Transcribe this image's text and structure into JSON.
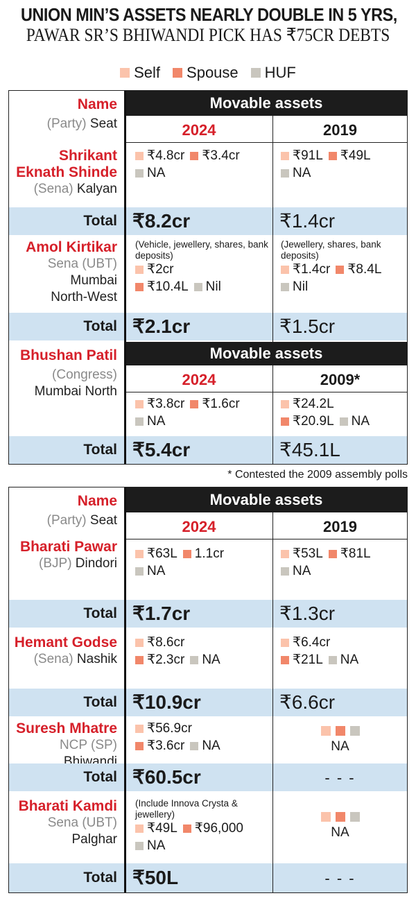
{
  "headline": {
    "line1": "UNION MIN’S ASSETS NEARLY DOUBLE IN 5 YRS,",
    "line2": "PAWAR SR’S BHIWANDI PICK HAS ₹75CR DEBTS"
  },
  "legend": {
    "self": "Self",
    "spouse": "Spouse",
    "huf": "HUF"
  },
  "colors": {
    "self": "#fbc3ab",
    "spouse": "#f1876a",
    "huf": "#c9c6be",
    "accent": "#d6202a",
    "total_bg": "#cfe2f1",
    "header_bg": "#1c1c1c"
  },
  "labels": {
    "name": "Name",
    "party_prefix": "(Party)",
    "seat": "Seat",
    "movable_assets": "Movable assets",
    "total": "Total",
    "na": "NA",
    "nil": "Nil",
    "dashes": "- - -"
  },
  "footnote": "* Contested the 2009 assembly polls",
  "chart_data": {
    "type": "table",
    "columns": [
      "Name (Party) Seat",
      "Movable assets"
    ],
    "candidates": [
      {
        "name_line1": "Shrikant",
        "name_line2": "Eknath Shinde",
        "party": "(Sena)",
        "seat": "Kalyan",
        "year_a": "2024",
        "year_b": "2019",
        "a": {
          "self": "₹4.8cr",
          "spouse": "₹3.4cr",
          "huf": "NA"
        },
        "b": {
          "self": "₹91L",
          "spouse": "₹49L",
          "huf": "NA"
        },
        "total_a": "₹8.2cr",
        "total_b": "₹1.4cr"
      },
      {
        "name": "Amol Kirtikar",
        "party": "Sena (UBT)",
        "seat_line1": "Mumbai",
        "seat_line2": "North-West",
        "note_a": "(Vehicle, jewellery, shares, bank deposits)",
        "note_b": "(Jewellery, shares, bank deposits)",
        "a": {
          "self": "₹2cr",
          "spouse": "₹10.4L",
          "huf": "Nil"
        },
        "b": {
          "self": "₹1.4cr",
          "spouse": "₹8.4L",
          "huf": "Nil"
        },
        "total_a": "₹2.1cr",
        "total_b": "₹1.5cr"
      },
      {
        "name": "Bhushan Patil",
        "party": "(Congress)",
        "seat": "Mumbai North",
        "year_a": "2024",
        "year_b": "2009*",
        "a": {
          "self": "₹3.8cr",
          "spouse": "₹1.6cr",
          "huf": "NA"
        },
        "b": {
          "self": "₹24.2L",
          "spouse": "₹20.9L",
          "huf": "NA"
        },
        "total_a": "₹5.4cr",
        "total_b": "₹45.1L"
      },
      {
        "name": "Bharati Pawar",
        "party": "(BJP)",
        "seat": "Dindori",
        "year_a": "2024",
        "year_b": "2019",
        "a": {
          "self": "₹63L",
          "spouse": "1.1cr",
          "huf": "NA"
        },
        "b": {
          "self": "₹53L",
          "spouse": "₹81L",
          "huf": "NA"
        },
        "total_a": "₹1.7cr",
        "total_b": "₹1.3cr"
      },
      {
        "name": "Hemant Godse",
        "party": "(Sena)",
        "seat": "Nashik",
        "a": {
          "self": "₹8.6cr",
          "spouse": "₹2.3cr",
          "huf": "NA"
        },
        "b": {
          "self": "₹6.4cr",
          "spouse": "₹21L",
          "huf": "NA"
        },
        "total_a": "₹10.9cr",
        "total_b": "₹6.6cr"
      },
      {
        "name": "Suresh Mhatre",
        "party": "NCP (SP)",
        "seat": "Bhiwandi",
        "a": {
          "self": "₹56.9cr",
          "spouse": "₹3.6cr",
          "huf": "NA"
        },
        "b": "NA",
        "total_a": "₹60.5cr",
        "total_b": "- - -"
      },
      {
        "name": "Bharati Kamdi",
        "party": "Sena (UBT)",
        "seat": "Palghar",
        "note_a": "(Include Innova Crysta & jewellery)",
        "a": {
          "self": "₹49L",
          "spouse": "₹96,000",
          "huf": "NA"
        },
        "b": "NA",
        "total_a": "₹50L",
        "total_b": "- - -"
      }
    ]
  }
}
